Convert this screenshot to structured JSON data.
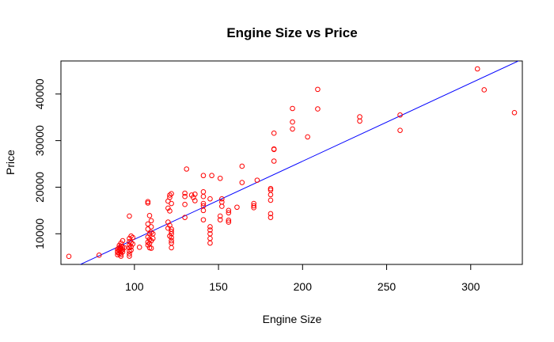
{
  "chart_data": {
    "type": "scatter",
    "title": "Engine Size vs Price",
    "xlabel": "Engine Size",
    "ylabel": "Price",
    "xlim": [
      61,
      326
    ],
    "ylim": [
      5118,
      45400
    ],
    "x_ticks": [
      "100",
      "150",
      "200",
      "250",
      "300"
    ],
    "y_ticks": [
      "10000",
      "20000",
      "30000",
      "40000"
    ],
    "grid": false,
    "colors": {
      "points": "#ff0000",
      "fit_line": "#0000ff",
      "frame": "#000000"
    },
    "fit_line": {
      "slope": 167.7,
      "intercept": -7964
    },
    "points": [
      [
        61,
        5150
      ],
      [
        79,
        5400
      ],
      [
        90,
        5500
      ],
      [
        90,
        6000
      ],
      [
        90,
        6300
      ],
      [
        90,
        6700
      ],
      [
        91,
        5700
      ],
      [
        91,
        6500
      ],
      [
        91,
        7000
      ],
      [
        91,
        7500
      ],
      [
        92,
        5200
      ],
      [
        92,
        5600
      ],
      [
        92,
        6200
      ],
      [
        92,
        6800
      ],
      [
        92,
        7300
      ],
      [
        92,
        8000
      ],
      [
        93,
        6100
      ],
      [
        93,
        6600
      ],
      [
        93,
        7100
      ],
      [
        93,
        8500
      ],
      [
        94,
        7000
      ],
      [
        97,
        5200
      ],
      [
        97,
        5700
      ],
      [
        97,
        6300
      ],
      [
        97,
        7000
      ],
      [
        97,
        7600
      ],
      [
        97,
        8300
      ],
      [
        97,
        9000
      ],
      [
        97,
        13800
      ],
      [
        98,
        6500
      ],
      [
        98,
        7200
      ],
      [
        98,
        8100
      ],
      [
        98,
        9500
      ],
      [
        99,
        7800
      ],
      [
        99,
        9200
      ],
      [
        103,
        7100
      ],
      [
        108,
        7600
      ],
      [
        108,
        8200
      ],
      [
        108,
        9300
      ],
      [
        108,
        11000
      ],
      [
        108,
        12100
      ],
      [
        108,
        16600
      ],
      [
        108,
        16900
      ],
      [
        109,
        7000
      ],
      [
        109,
        7900
      ],
      [
        109,
        8800
      ],
      [
        109,
        10000
      ],
      [
        109,
        13900
      ],
      [
        110,
        6900
      ],
      [
        110,
        8500
      ],
      [
        110,
        10300
      ],
      [
        110,
        11500
      ],
      [
        110,
        12800
      ],
      [
        111,
        9000
      ],
      [
        111,
        10000
      ],
      [
        120,
        11200
      ],
      [
        120,
        12500
      ],
      [
        120,
        15500
      ],
      [
        120,
        17000
      ],
      [
        121,
        9500
      ],
      [
        121,
        11800
      ],
      [
        121,
        14900
      ],
      [
        121,
        17800
      ],
      [
        121,
        18300
      ],
      [
        122,
        7000
      ],
      [
        122,
        8000
      ],
      [
        122,
        8500
      ],
      [
        122,
        9200
      ],
      [
        122,
        10000
      ],
      [
        122,
        10500
      ],
      [
        122,
        11000
      ],
      [
        122,
        16500
      ],
      [
        122,
        18600
      ],
      [
        130,
        13500
      ],
      [
        130,
        16300
      ],
      [
        130,
        18000
      ],
      [
        130,
        18700
      ],
      [
        131,
        23900
      ],
      [
        134,
        18300
      ],
      [
        135,
        17800
      ],
      [
        136,
        17100
      ],
      [
        136,
        18500
      ],
      [
        141,
        15000
      ],
      [
        141,
        16000
      ],
      [
        141,
        16500
      ],
      [
        141,
        18000
      ],
      [
        141,
        19000
      ],
      [
        141,
        22500
      ],
      [
        141,
        13000
      ],
      [
        145,
        8000
      ],
      [
        145,
        9000
      ],
      [
        145,
        10000
      ],
      [
        145,
        10800
      ],
      [
        145,
        11500
      ],
      [
        145,
        17500
      ],
      [
        146,
        22500
      ],
      [
        151,
        13000
      ],
      [
        151,
        13800
      ],
      [
        151,
        21900
      ],
      [
        152,
        15900
      ],
      [
        152,
        16800
      ],
      [
        152,
        17500
      ],
      [
        156,
        12500
      ],
      [
        156,
        12900
      ],
      [
        156,
        14500
      ],
      [
        156,
        15000
      ],
      [
        161,
        15700
      ],
      [
        164,
        21000
      ],
      [
        164,
        24500
      ],
      [
        171,
        15600
      ],
      [
        171,
        16000
      ],
      [
        171,
        16500
      ],
      [
        173,
        21500
      ],
      [
        181,
        13500
      ],
      [
        181,
        14300
      ],
      [
        181,
        17200
      ],
      [
        181,
        18400
      ],
      [
        181,
        19400
      ],
      [
        181,
        19700
      ],
      [
        183,
        25600
      ],
      [
        183,
        28100
      ],
      [
        183,
        28200
      ],
      [
        183,
        31600
      ],
      [
        194,
        32500
      ],
      [
        194,
        34000
      ],
      [
        194,
        36900
      ],
      [
        203,
        30800
      ],
      [
        209,
        36800
      ],
      [
        209,
        41000
      ],
      [
        234,
        34200
      ],
      [
        234,
        35100
      ],
      [
        258,
        35500
      ],
      [
        258,
        32200
      ],
      [
        304,
        45400
      ],
      [
        308,
        40900
      ],
      [
        326,
        36000
      ]
    ]
  }
}
